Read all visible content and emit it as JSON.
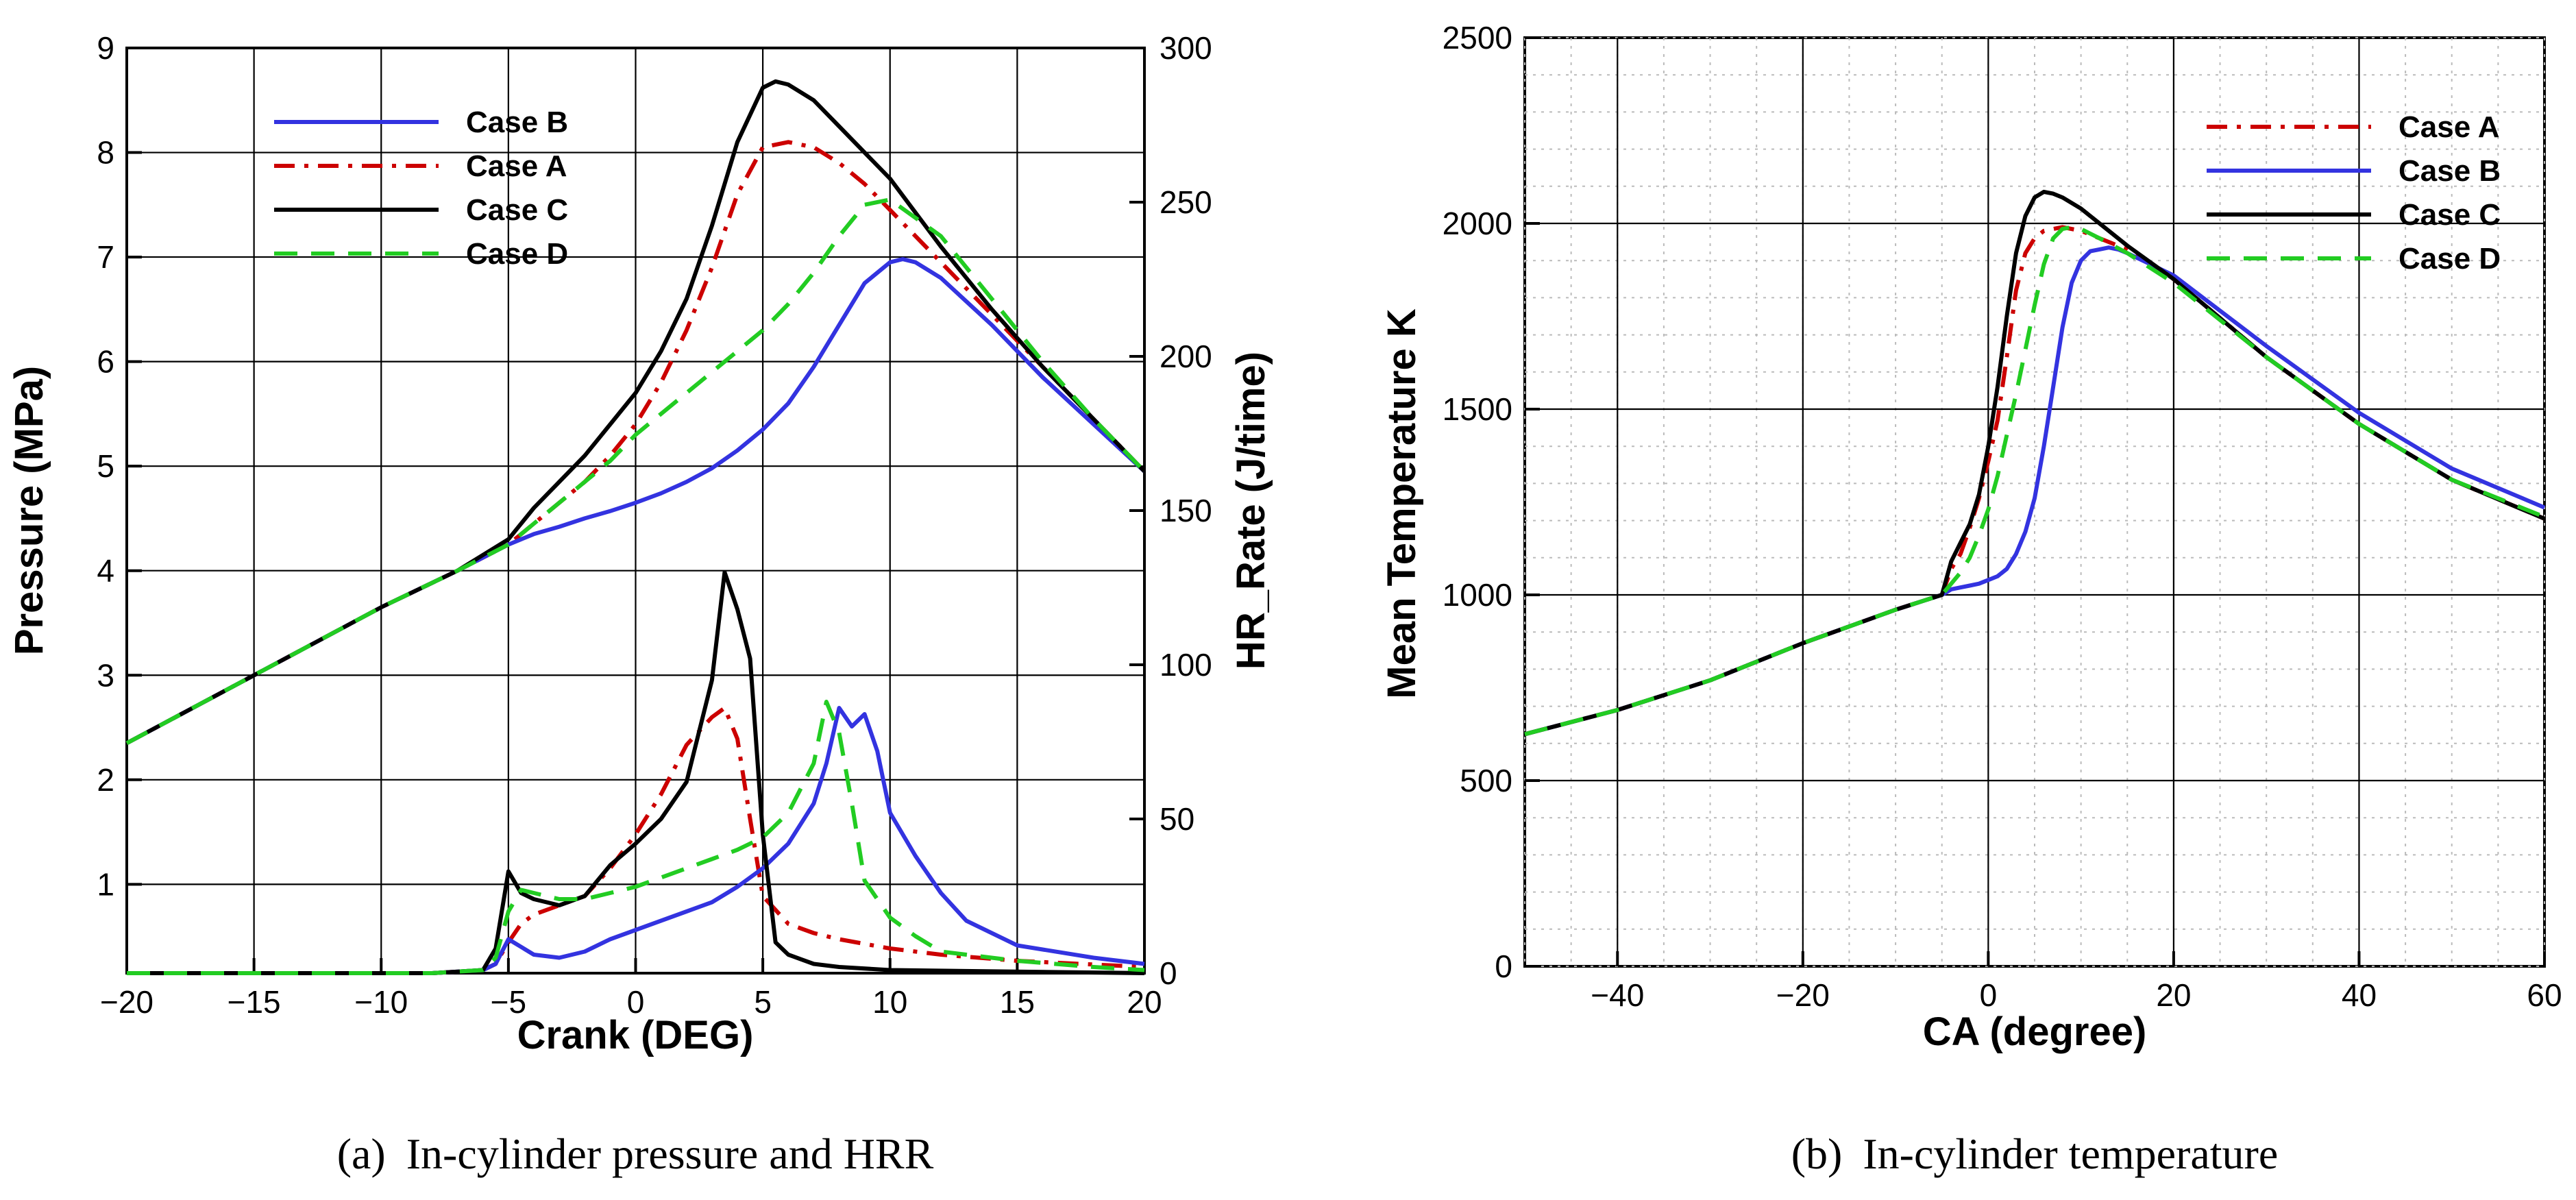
{
  "colors": {
    "case_a": "#cc0000",
    "case_b": "#3333e0",
    "case_c": "#000000",
    "case_d": "#22cc22"
  },
  "chart_data": [
    {
      "type": "line",
      "caption_prefix": "(a)",
      "caption_text": "In-cylinder pressure and HRR",
      "xlabel": "Crank (DEG)",
      "ylabel": "Pressure (MPa)",
      "y2label": "HR_Rate (J/time)",
      "xlim": [
        -20,
        20
      ],
      "ylim": [
        0.15,
        9
      ],
      "y2lim": [
        0,
        300
      ],
      "xticks": [
        -20,
        -15,
        -10,
        -5,
        0,
        5,
        10,
        15,
        20
      ],
      "yticks": [
        1,
        2,
        3,
        4,
        5,
        6,
        7,
        8,
        9
      ],
      "y2ticks": [
        0,
        50,
        100,
        150,
        200,
        250,
        300
      ],
      "grid": true,
      "legend_position": "top-left",
      "legend": [
        {
          "key": "case_b",
          "label": "Case B",
          "dash": "solid"
        },
        {
          "key": "case_a",
          "label": "Case A",
          "dash": "dashdot"
        },
        {
          "key": "case_c",
          "label": "Case C",
          "dash": "solid"
        },
        {
          "key": "case_d",
          "label": "Case D",
          "dash": "dashed"
        }
      ],
      "series": [
        {
          "key": "case_a",
          "axis": "pressure",
          "x": [
            -20,
            -15,
            -10,
            -7,
            -5,
            -4,
            -3,
            -2,
            -1,
            0,
            1,
            2,
            3,
            4,
            5,
            6,
            7,
            8,
            9,
            10,
            12,
            14,
            16,
            18,
            20
          ],
          "y": [
            2.35,
            3.0,
            3.65,
            4.0,
            4.25,
            4.45,
            4.65,
            4.85,
            5.1,
            5.4,
            5.8,
            6.3,
            6.9,
            7.6,
            8.05,
            8.1,
            8.05,
            7.9,
            7.7,
            7.45,
            6.95,
            6.45,
            5.95,
            5.45,
            4.95
          ]
        },
        {
          "key": "case_b",
          "axis": "pressure",
          "x": [
            -20,
            -15,
            -10,
            -7,
            -5,
            -4,
            -3,
            -2,
            -1,
            0,
            1,
            2,
            3,
            4,
            5,
            6,
            7,
            8,
            9,
            10,
            10.5,
            11,
            12,
            14,
            16,
            18,
            20
          ],
          "y": [
            2.35,
            3.0,
            3.65,
            4.0,
            4.25,
            4.35,
            4.42,
            4.5,
            4.57,
            4.65,
            4.74,
            4.85,
            4.98,
            5.15,
            5.35,
            5.6,
            5.95,
            6.35,
            6.75,
            6.95,
            6.98,
            6.95,
            6.8,
            6.35,
            5.85,
            5.4,
            4.95
          ]
        },
        {
          "key": "case_c",
          "axis": "pressure",
          "x": [
            -20,
            -15,
            -10,
            -7,
            -5,
            -4,
            -3,
            -2,
            -1,
            0,
            1,
            2,
            3,
            4,
            5,
            5.5,
            6,
            7,
            8,
            9,
            10,
            12,
            14,
            16,
            18,
            20
          ],
          "y": [
            2.35,
            3.0,
            3.65,
            4.0,
            4.3,
            4.6,
            4.85,
            5.1,
            5.4,
            5.7,
            6.1,
            6.6,
            7.3,
            8.1,
            8.62,
            8.68,
            8.65,
            8.5,
            8.25,
            8.0,
            7.75,
            7.1,
            6.5,
            5.95,
            5.45,
            4.95
          ]
        },
        {
          "key": "case_d",
          "axis": "pressure",
          "x": [
            -20,
            -15,
            -10,
            -7,
            -5,
            -4,
            -3,
            -2,
            -1,
            0,
            1,
            2,
            3,
            4,
            5,
            6,
            7,
            8,
            9,
            10,
            12,
            14,
            16,
            18,
            20
          ],
          "y": [
            2.35,
            3.0,
            3.65,
            4.0,
            4.25,
            4.45,
            4.65,
            4.85,
            5.05,
            5.3,
            5.5,
            5.7,
            5.9,
            6.1,
            6.3,
            6.55,
            6.85,
            7.2,
            7.5,
            7.55,
            7.2,
            6.6,
            6.0,
            5.45,
            4.95
          ]
        },
        {
          "key": "case_a",
          "axis": "hrr",
          "x": [
            -20,
            -8,
            -6,
            -5.5,
            -5,
            -4.5,
            -4,
            -3,
            -2,
            -1,
            0,
            1,
            2,
            3,
            3.5,
            4,
            4.5,
            5,
            6,
            7,
            8,
            10,
            12,
            15,
            20
          ],
          "y": [
            0,
            0,
            1,
            3,
            10,
            16,
            19,
            22,
            25,
            34,
            45,
            58,
            74,
            83,
            86,
            76,
            50,
            25,
            16,
            13,
            11,
            8,
            6,
            4,
            2
          ]
        },
        {
          "key": "case_b",
          "axis": "hrr",
          "x": [
            -20,
            -8,
            -6,
            -5.5,
            -5,
            -4,
            -3,
            -2,
            -1,
            0,
            1,
            2,
            3,
            4,
            5,
            6,
            7,
            7.5,
            8,
            8.5,
            9,
            9.5,
            10,
            11,
            12,
            13,
            15,
            18,
            20
          ],
          "y": [
            0,
            0,
            1,
            3,
            11,
            6,
            5,
            7,
            11,
            14,
            17,
            20,
            23,
            28,
            34,
            42,
            55,
            68,
            86,
            80,
            84,
            72,
            52,
            38,
            26,
            17,
            9,
            5,
            3
          ]
        },
        {
          "key": "case_c",
          "axis": "hrr",
          "x": [
            -20,
            -8,
            -6,
            -5.5,
            -5,
            -4.5,
            -4,
            -3,
            -2,
            -1,
            0,
            1,
            2,
            3,
            3.5,
            4,
            4.5,
            5,
            5.5,
            6,
            7,
            8,
            10,
            20
          ],
          "y": [
            0,
            0,
            1,
            8,
            33,
            26,
            24,
            22,
            25,
            35,
            42,
            50,
            62,
            95,
            130,
            118,
            102,
            45,
            10,
            6,
            3,
            2,
            1,
            0
          ]
        },
        {
          "key": "case_d",
          "axis": "hrr",
          "x": [
            -20,
            -8,
            -6,
            -5.5,
            -5,
            -4.5,
            -4,
            -3,
            -2,
            -1,
            0,
            1,
            2,
            3,
            4,
            5,
            6,
            7,
            7.5,
            8,
            8.5,
            9,
            10,
            11,
            12,
            15,
            18,
            20
          ],
          "y": [
            0,
            0,
            1,
            5,
            20,
            27,
            26,
            24,
            24,
            26,
            28,
            31,
            34,
            37,
            40,
            44,
            52,
            68,
            88,
            78,
            55,
            30,
            18,
            12,
            7,
            4,
            2,
            1
          ]
        }
      ]
    },
    {
      "type": "line",
      "caption_prefix": "(b)",
      "caption_text": "In-cylinder temperature",
      "xlabel": "CA (degree)",
      "ylabel": "Mean Temperature K",
      "xlim": [
        -50,
        60
      ],
      "ylim": [
        0,
        2500
      ],
      "xticks": [
        -40,
        -20,
        0,
        20,
        40,
        60
      ],
      "yticks": [
        0,
        500,
        1000,
        1500,
        2000,
        2500
      ],
      "grid": true,
      "minor_grid": true,
      "legend_position": "top-right",
      "legend": [
        {
          "key": "case_a",
          "label": "Case A",
          "dash": "dashdot"
        },
        {
          "key": "case_b",
          "label": "Case B",
          "dash": "solid"
        },
        {
          "key": "case_c",
          "label": "Case C",
          "dash": "solid"
        },
        {
          "key": "case_d",
          "label": "Case D",
          "dash": "dashed"
        }
      ],
      "series": [
        {
          "key": "case_a",
          "x": [
            -50,
            -40,
            -30,
            -20,
            -10,
            -5,
            -4,
            -3,
            -2,
            -1,
            0,
            1,
            2,
            3,
            4,
            5,
            6,
            8,
            10,
            12,
            15,
            20,
            30,
            40,
            50,
            60
          ],
          "y": [
            625,
            690,
            770,
            870,
            960,
            1000,
            1070,
            1110,
            1180,
            1260,
            1360,
            1470,
            1640,
            1820,
            1920,
            1960,
            1980,
            1990,
            1980,
            1960,
            1930,
            1850,
            1640,
            1460,
            1310,
            1205
          ]
        },
        {
          "key": "case_b",
          "x": [
            -50,
            -40,
            -30,
            -20,
            -10,
            -5,
            -4,
            -3,
            -2,
            -1,
            0,
            1,
            2,
            3,
            4,
            5,
            6,
            7,
            8,
            9,
            10,
            11,
            12,
            13,
            14,
            15,
            20,
            30,
            40,
            50,
            60
          ],
          "y": [
            625,
            690,
            770,
            870,
            960,
            1000,
            1015,
            1020,
            1025,
            1030,
            1040,
            1050,
            1070,
            1110,
            1170,
            1260,
            1400,
            1560,
            1720,
            1840,
            1900,
            1925,
            1930,
            1935,
            1930,
            1920,
            1860,
            1670,
            1490,
            1340,
            1235
          ]
        },
        {
          "key": "case_c",
          "x": [
            -50,
            -40,
            -30,
            -20,
            -10,
            -5,
            -4,
            -3,
            -2,
            -1,
            0,
            1,
            2,
            3,
            4,
            5,
            6,
            7,
            8,
            10,
            12,
            15,
            20,
            30,
            40,
            50,
            60
          ],
          "y": [
            625,
            690,
            770,
            870,
            960,
            1000,
            1090,
            1140,
            1190,
            1270,
            1400,
            1560,
            1750,
            1920,
            2020,
            2070,
            2085,
            2080,
            2070,
            2040,
            2000,
            1940,
            1850,
            1640,
            1460,
            1310,
            1205
          ]
        },
        {
          "key": "case_d",
          "x": [
            -50,
            -40,
            -30,
            -20,
            -10,
            -5,
            -4,
            -3,
            -2,
            -1,
            0,
            1,
            2,
            3,
            4,
            5,
            6,
            7,
            8,
            9,
            10,
            12,
            15,
            20,
            30,
            40,
            50,
            60
          ],
          "y": [
            625,
            690,
            770,
            870,
            960,
            1000,
            1030,
            1060,
            1100,
            1160,
            1230,
            1320,
            1430,
            1540,
            1660,
            1780,
            1890,
            1960,
            1985,
            1990,
            1985,
            1960,
            1920,
            1840,
            1640,
            1460,
            1310,
            1210
          ]
        }
      ]
    }
  ]
}
